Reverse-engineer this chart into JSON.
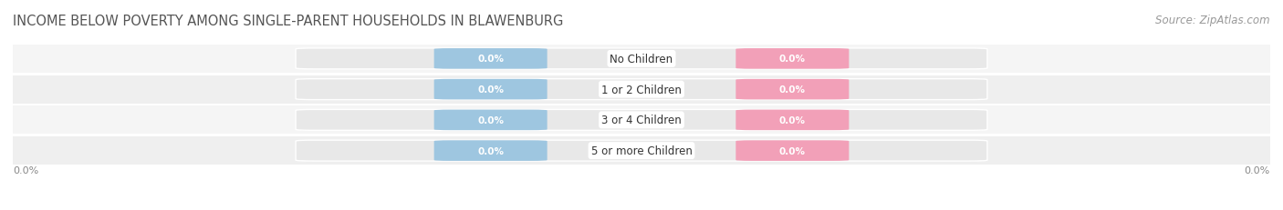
{
  "title": "INCOME BELOW POVERTY AMONG SINGLE-PARENT HOUSEHOLDS IN BLAWENBURG",
  "source": "Source: ZipAtlas.com",
  "categories": [
    "No Children",
    "1 or 2 Children",
    "3 or 4 Children",
    "5 or more Children"
  ],
  "single_father_values": [
    0.0,
    0.0,
    0.0,
    0.0
  ],
  "single_mother_values": [
    0.0,
    0.0,
    0.0,
    0.0
  ],
  "father_color": "#9ec6e0",
  "mother_color": "#f2a0b8",
  "bar_bg_color": "#e8e8e8",
  "axis_label_left": "0.0%",
  "axis_label_right": "0.0%",
  "title_fontsize": 10.5,
  "source_fontsize": 8.5,
  "legend_fontsize": 9,
  "background_color": "#ffffff",
  "bar_bg_stripe_color": "#f0f0f0",
  "text_color": "#555555",
  "label_text_color": "#666666"
}
